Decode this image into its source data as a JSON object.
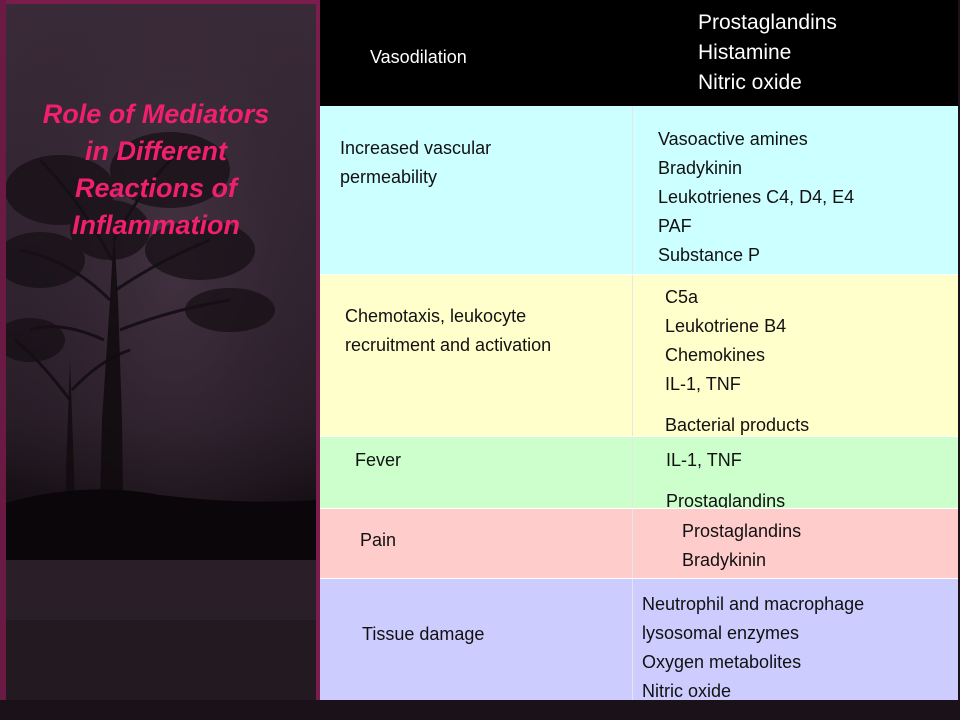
{
  "slide": {
    "title_lines": [
      "Role of Mediators",
      "in Different",
      "Reactions of",
      "Inflammation"
    ]
  },
  "table": {
    "rows": [
      {
        "reaction_lines": [
          "Vasodilation"
        ],
        "mediator_lines": [
          "Prostaglandins",
          "Histamine",
          "Nitric oxide"
        ],
        "color": "#000000"
      },
      {
        "reaction_lines": [
          "Increased vascular",
          "permeability"
        ],
        "mediator_lines": [
          "Vasoactive amines",
          "Bradykinin",
          "Leukotrienes C4, D4, E4",
          "PAF",
          "Substance P"
        ],
        "color": "#ccffff"
      },
      {
        "reaction_lines": [
          "Chemotaxis, leukocyte",
          "recruitment and activation"
        ],
        "mediator_lines": [
          "C5a",
          "Leukotriene B4",
          "Chemokines",
          "IL-1, TNF",
          "Bacterial products"
        ],
        "color": "#ffffcc"
      },
      {
        "reaction_lines": [
          "Fever"
        ],
        "mediator_lines": [
          "IL-1, TNF",
          "Prostaglandins"
        ],
        "color": "#ccffcc"
      },
      {
        "reaction_lines": [
          "Pain"
        ],
        "mediator_lines": [
          "Prostaglandins",
          "Bradykinin"
        ],
        "color": "#ffcccc"
      },
      {
        "reaction_lines": [
          "Tissue damage"
        ],
        "mediator_lines": [
          "Neutrophil and macrophage",
          "lysosomal enzymes",
          "Oxygen metabolites",
          "Nitric oxide"
        ],
        "color": "#ccccff"
      }
    ]
  },
  "colors": {
    "title": "#f0206e",
    "frame": "#7a1c4c"
  }
}
